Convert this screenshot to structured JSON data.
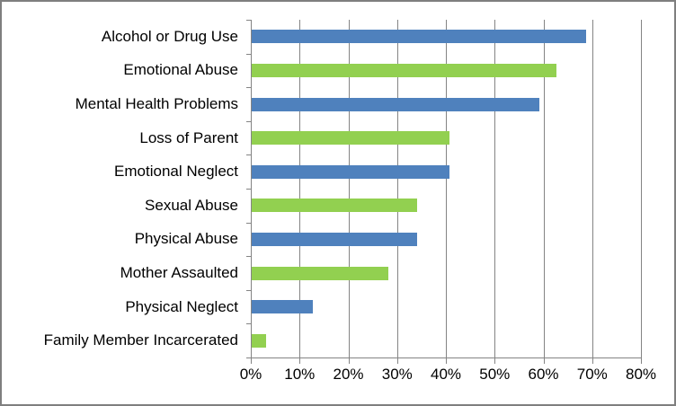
{
  "chart_data": {
    "type": "bar",
    "orientation": "horizontal",
    "title": "",
    "xlabel": "",
    "ylabel": "",
    "categories": [
      "Alcohol or Drug Use",
      "Emotional Abuse",
      "Mental Health Problems",
      "Loss of Parent",
      "Emotional Neglect",
      "Sexual Abuse",
      "Physical Abuse",
      "Mother Assaulted",
      "Physical Neglect",
      "Family Member Incarcerated"
    ],
    "values": [
      68.5,
      62.5,
      59,
      40.5,
      40.5,
      34,
      34,
      28,
      12.5,
      3
    ],
    "unit": "%",
    "bar_colors": [
      "#4F81BD",
      "#92D050",
      "#4F81BD",
      "#92D050",
      "#4F81BD",
      "#92D050",
      "#4F81BD",
      "#92D050",
      "#4F81BD",
      "#92D050"
    ],
    "xlim": [
      0,
      80
    ],
    "x_ticks": [
      0,
      10,
      20,
      30,
      40,
      50,
      60,
      70,
      80
    ],
    "x_tick_labels": [
      "0%",
      "10%",
      "20%",
      "30%",
      "40%",
      "50%",
      "60%",
      "70%",
      "80%"
    ],
    "grid": "vertical-only",
    "legend": "none"
  },
  "colors": {
    "bar_blue": "#4F81BD",
    "bar_green": "#92D050",
    "axis": "#848484",
    "gridline": "#848484",
    "frame_border": "#7F7F7F",
    "background": "#FFFFFF",
    "text": "#000000"
  }
}
